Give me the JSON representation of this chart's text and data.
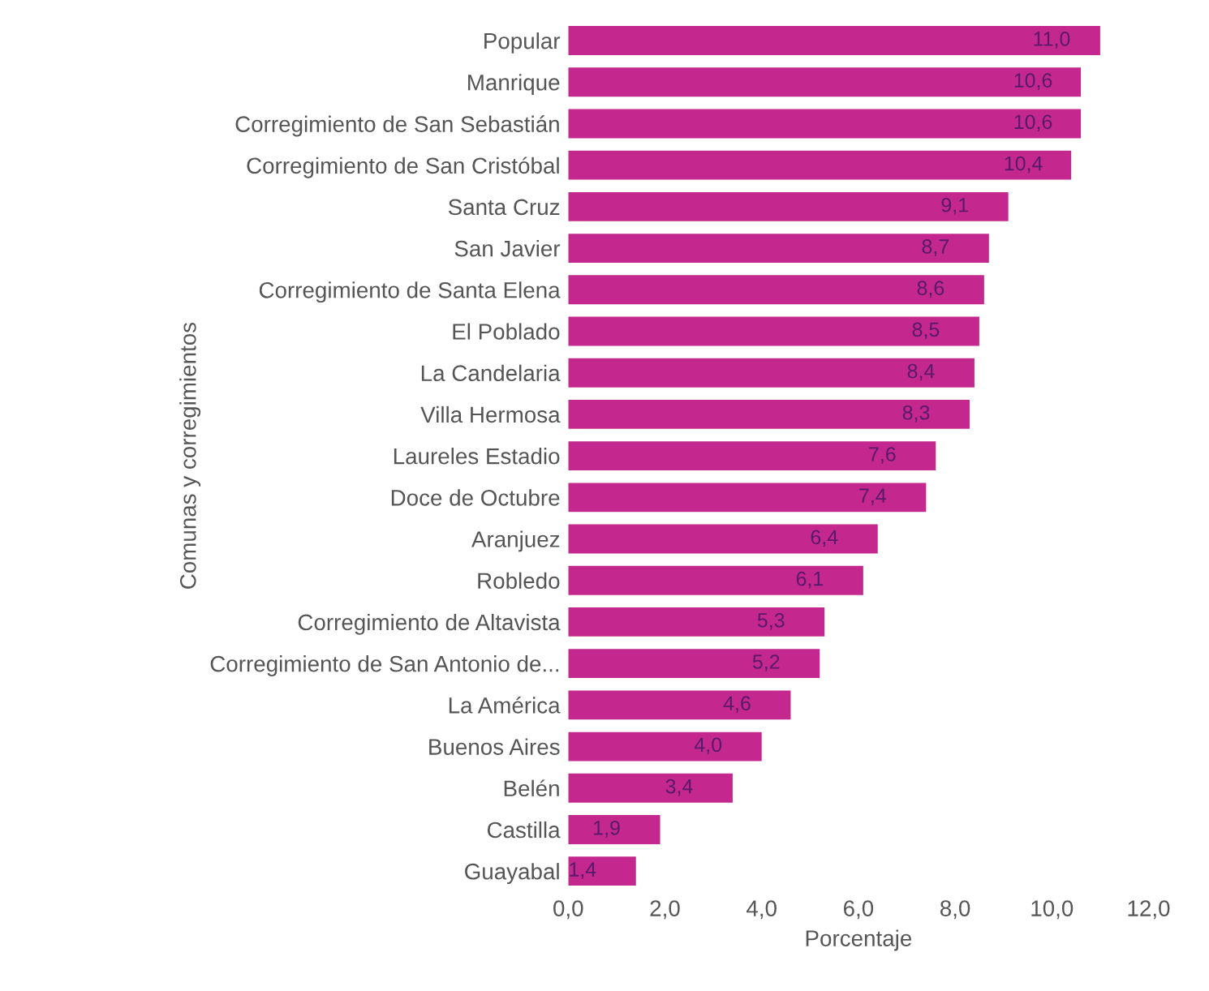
{
  "chart_data": {
    "type": "bar",
    "orientation": "horizontal",
    "xlabel": "Porcentaje",
    "ylabel": "Comunas y corregimientos",
    "categories": [
      "Popular",
      "Manrique",
      "Corregimiento de San Sebastián",
      "Corregimiento de San Cristóbal",
      "Santa Cruz",
      "San Javier",
      "Corregimiento de Santa Elena",
      "El Poblado",
      "La Candelaria",
      "Villa Hermosa",
      "Laureles Estadio",
      "Doce de Octubre",
      "Aranjuez",
      "Robledo",
      "Corregimiento de Altavista",
      "Corregimiento de San Antonio de...",
      "La América",
      "Buenos Aires",
      "Belén",
      "Castilla",
      "Guayabal"
    ],
    "values": [
      11.0,
      10.6,
      10.6,
      10.4,
      9.1,
      8.7,
      8.6,
      8.5,
      8.4,
      8.3,
      7.6,
      7.4,
      6.4,
      6.1,
      5.3,
      5.2,
      4.6,
      4.0,
      3.4,
      1.9,
      1.4
    ],
    "value_labels": [
      "11,0",
      "10,6",
      "10,6",
      "10,4",
      "9,1",
      "8,7",
      "8,6",
      "8,5",
      "8,4",
      "8,3",
      "7,6",
      "7,4",
      "6,4",
      "6,1",
      "5,3",
      "5,2",
      "4,6",
      "4,0",
      "3,4",
      "1,9",
      "1,4"
    ],
    "color": "#c4288f",
    "xlim": [
      0,
      12
    ],
    "xticks": [
      {
        "value": 0,
        "label": "0,0"
      },
      {
        "value": 2,
        "label": "2,0"
      },
      {
        "value": 4,
        "label": "4,0"
      },
      {
        "value": 6,
        "label": "6,0"
      },
      {
        "value": 8,
        "label": "8,0"
      },
      {
        "value": 10,
        "label": "10,0"
      },
      {
        "value": 12,
        "label": "12,0"
      }
    ],
    "grid": false,
    "legend": false
  }
}
